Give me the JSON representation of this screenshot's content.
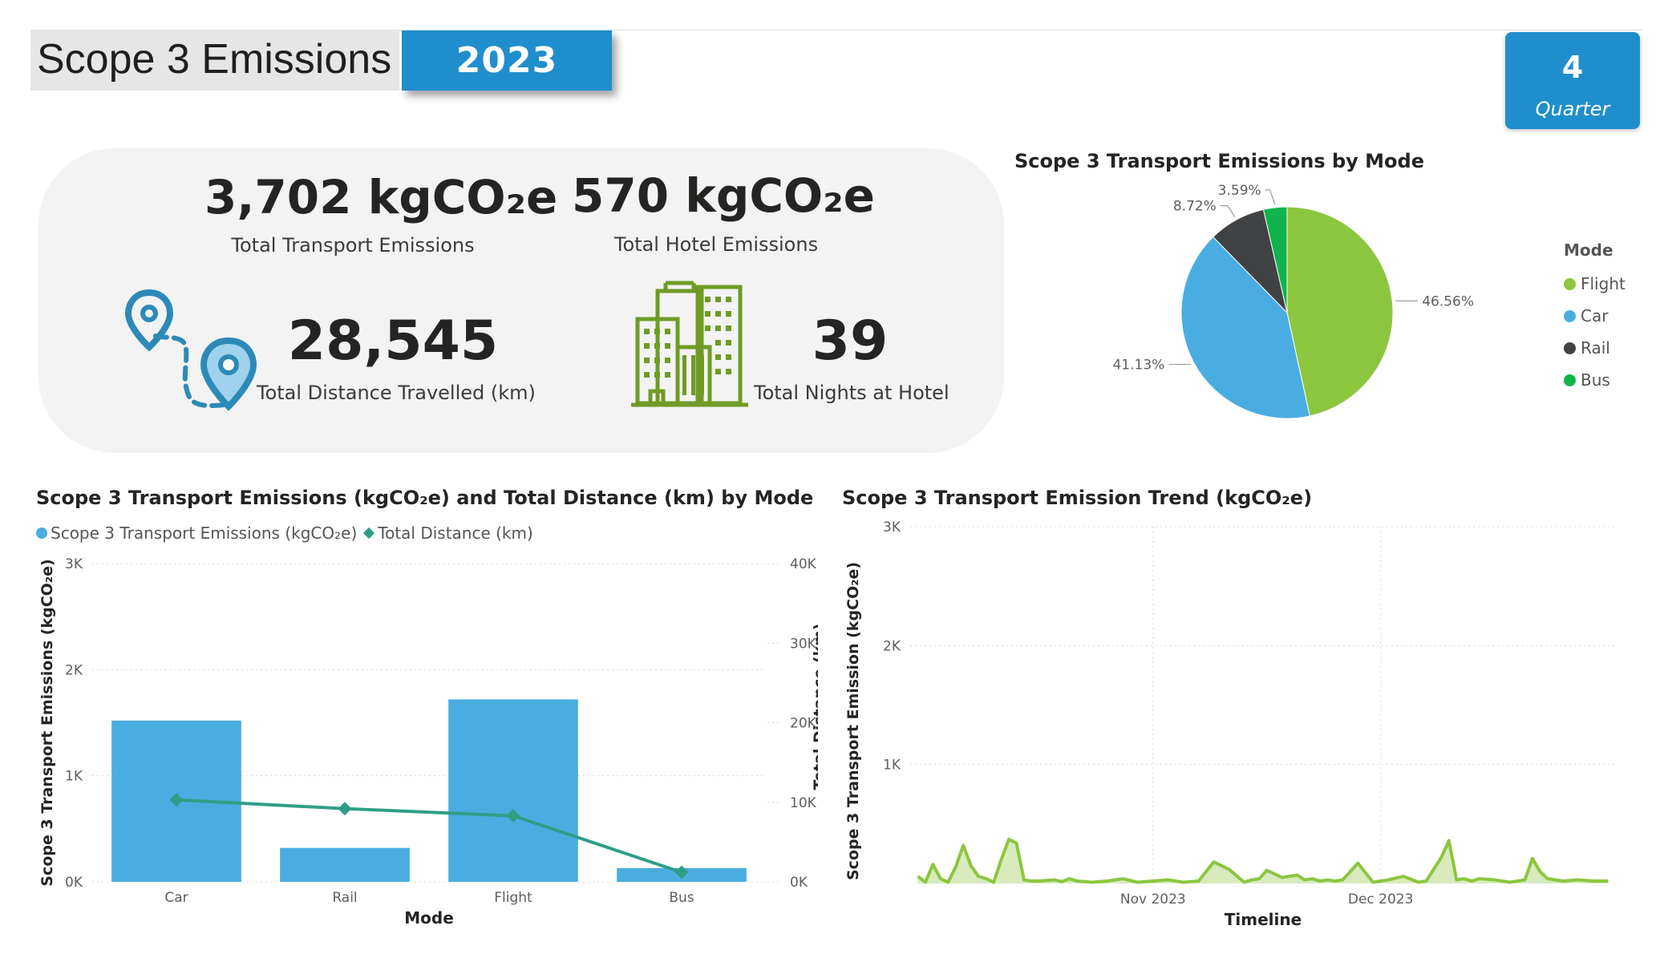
{
  "header": {
    "title": "Scope 3 Emissions",
    "year": "2023",
    "quarter_number": "4",
    "quarter_label": "Quarter"
  },
  "kpis": {
    "transport": {
      "value": "3,702 kgCO₂e",
      "label": "Total Transport Emissions"
    },
    "hotel": {
      "value": "570 kgCO₂e",
      "label": "Total Hotel Emissions"
    },
    "distance": {
      "value": "28,545",
      "label": "Total Distance Travelled (km)"
    },
    "nights": {
      "value": "39",
      "label": "Total Nights at Hotel"
    }
  },
  "icons": {
    "route": "map-route-pins-icon",
    "hotel": "hotel-building-icon"
  },
  "colors": {
    "blue_accent": "#1f8ecc",
    "flight": "#8cc63f",
    "car": "#4aade1",
    "rail": "#404244",
    "bus": "#12b24c",
    "distance_line": "#2f9e86",
    "trend": "#8cc63f"
  },
  "chart_data": [
    {
      "type": "pie",
      "title": "Scope 3 Transport Emissions by Mode",
      "legend_title": "Mode",
      "legend_position": "right",
      "categories": [
        "Flight",
        "Car",
        "Rail",
        "Bus"
      ],
      "values": [
        46.56,
        41.13,
        8.72,
        3.59
      ],
      "labels": [
        "46.56%",
        "41.13%",
        "8.72%",
        "3.59%"
      ]
    },
    {
      "type": "bar",
      "title": "Scope 3 Transport Emissions (kgCO₂e) and Total Distance (km) by Mode",
      "xlabel": "Mode",
      "ylabel": "Scope 3 Transport Emissions (kgCO₂e)",
      "y2label": "Total Distance (km)",
      "categories": [
        "Car",
        "Rail",
        "Flight",
        "Bus"
      ],
      "ylim": [
        0,
        3000
      ],
      "y2lim": [
        0,
        40000
      ],
      "yticks": [
        "0K",
        "1K",
        "2K",
        "3K"
      ],
      "y2ticks": [
        "0K",
        "10K",
        "20K",
        "30K",
        "40K"
      ],
      "grid": true,
      "legend_position": "top-left",
      "series": [
        {
          "name": "Scope 3 Transport Emissions (kgCO₂e)",
          "type": "bar",
          "axis": "left",
          "values": [
            1520,
            320,
            1720,
            130
          ]
        },
        {
          "name": "Total Distance (km)",
          "type": "line",
          "axis": "right",
          "values": [
            10300,
            9200,
            8300,
            1200
          ]
        }
      ]
    },
    {
      "type": "area",
      "title": "Scope 3 Transport Emission Trend (kgCO₂e)",
      "xlabel": "Timeline",
      "ylabel": "Scope 3 Transport Emission (kgCO₂e)",
      "ylim": [
        0,
        3000
      ],
      "yticks": [
        "1K",
        "2K",
        "3K"
      ],
      "xticks": [
        "Nov 2023",
        "Dec 2023"
      ],
      "grid": true,
      "x": [
        "2023-10-01",
        "2023-10-02",
        "2023-10-03",
        "2023-10-04",
        "2023-10-05",
        "2023-10-06",
        "2023-10-07",
        "2023-10-08",
        "2023-10-09",
        "2023-10-10",
        "2023-10-11",
        "2023-10-12",
        "2023-10-13",
        "2023-10-14",
        "2023-10-15",
        "2023-10-16",
        "2023-10-17",
        "2023-10-18",
        "2023-10-19",
        "2023-10-20",
        "2023-10-21",
        "2023-10-22",
        "2023-10-24",
        "2023-10-26",
        "2023-10-28",
        "2023-10-30",
        "2023-11-01",
        "2023-11-03",
        "2023-11-05",
        "2023-11-07",
        "2023-11-09",
        "2023-11-11",
        "2023-11-13",
        "2023-11-14",
        "2023-11-15",
        "2023-11-16",
        "2023-11-18",
        "2023-11-20",
        "2023-11-21",
        "2023-11-22",
        "2023-11-23",
        "2023-11-24",
        "2023-11-25",
        "2023-11-26",
        "2023-11-28",
        "2023-11-30",
        "2023-12-01",
        "2023-12-02",
        "2023-12-04",
        "2023-12-06",
        "2023-12-07",
        "2023-12-08",
        "2023-12-09",
        "2023-12-10",
        "2023-12-11",
        "2023-12-12",
        "2023-12-13",
        "2023-12-14",
        "2023-12-16",
        "2023-12-18",
        "2023-12-20",
        "2023-12-21",
        "2023-12-22",
        "2023-12-23",
        "2023-12-25",
        "2023-12-27",
        "2023-12-29",
        "2023-12-31"
      ],
      "values": [
        60,
        10,
        160,
        40,
        10,
        140,
        320,
        150,
        60,
        40,
        10,
        200,
        370,
        340,
        30,
        20,
        20,
        25,
        30,
        15,
        40,
        20,
        10,
        20,
        40,
        10,
        20,
        30,
        10,
        20,
        180,
        120,
        10,
        30,
        40,
        110,
        50,
        70,
        30,
        40,
        20,
        30,
        20,
        30,
        170,
        10,
        20,
        30,
        60,
        10,
        20,
        120,
        220,
        360,
        30,
        40,
        20,
        40,
        30,
        10,
        30,
        210,
        100,
        40,
        20,
        30,
        20,
        20
      ]
    }
  ]
}
